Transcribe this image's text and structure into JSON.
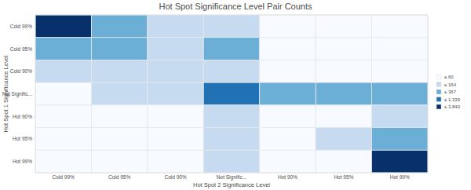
{
  "chart_data": {
    "type": "heatmap",
    "title": "Hot Spot Significance Level Pair Counts",
    "x_label": "Hot Spot 2 Significance Level",
    "y_label": "Hot Spot 1 Significance Level",
    "categories": [
      "Cold 99%",
      "Cold 95%",
      "Cold 90%",
      "Not Signific...",
      "Hot 90%",
      "Hot 95%",
      "Hot 99%"
    ],
    "y_categories": [
      "Cold 99%",
      "Cold 95%",
      "Cold 90%",
      "Not Signific...",
      "Hot 90%",
      "Hot 95%",
      "Hot 99%"
    ],
    "values": [
      [
        3840,
        300,
        120,
        100,
        20,
        10,
        5
      ],
      [
        280,
        250,
        110,
        300,
        15,
        10,
        5
      ],
      [
        100,
        120,
        130,
        140,
        20,
        10,
        10
      ],
      [
        40,
        110,
        140,
        1339,
        300,
        320,
        340
      ],
      [
        5,
        10,
        15,
        120,
        30,
        40,
        100
      ],
      [
        5,
        5,
        10,
        130,
        30,
        90,
        250
      ],
      [
        5,
        5,
        10,
        120,
        20,
        50,
        3600
      ]
    ],
    "colorbar": {
      "ticks": [
        {
          "value": 60,
          "label": "≤ 60"
        },
        {
          "value": 154,
          "label": "≤ 154"
        },
        {
          "value": 367,
          "label": "≤ 367"
        },
        {
          "value": 1339,
          "label": "≤ 1,339"
        },
        {
          "value": 3840,
          "label": "≤ 3,840"
        }
      ],
      "colors": [
        "#f7fbff",
        "#c6dbef",
        "#6baed6",
        "#2171b5",
        "#08306b"
      ]
    }
  }
}
